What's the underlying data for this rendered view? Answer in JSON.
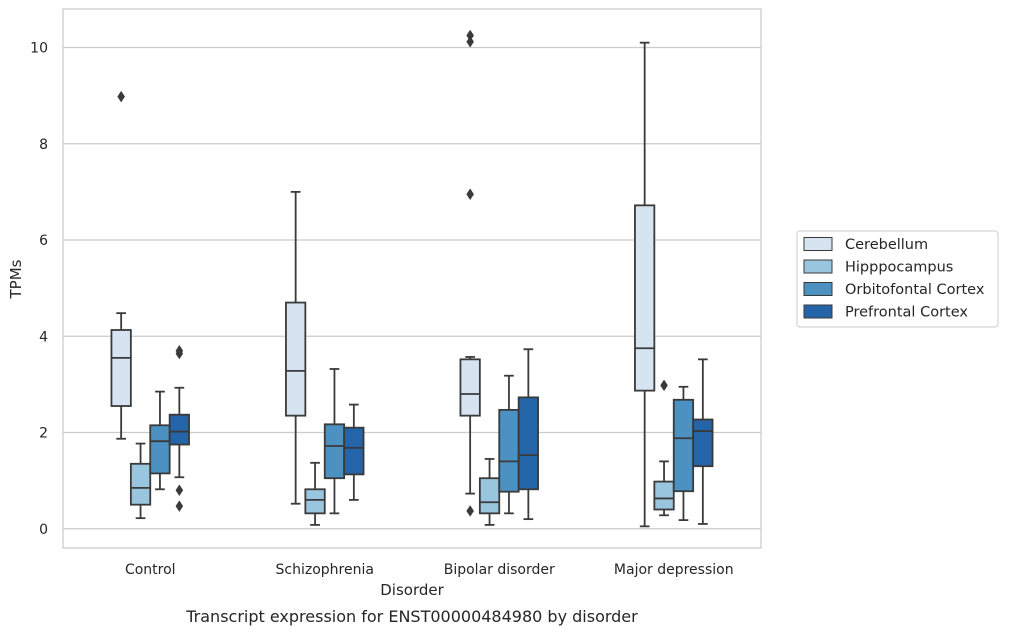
{
  "chart_data": {
    "type": "boxplot",
    "caption": "Transcript expression for ENST00000484980 by disorder",
    "xlabel": "Disorder",
    "ylabel": "TPMs",
    "ylim": [
      -0.4,
      10.8
    ],
    "yticks": [
      0,
      2,
      4,
      6,
      8,
      10
    ],
    "grid": true,
    "legend_position": "right",
    "categories": [
      "Control",
      "Schizophrenia",
      "Bipolar disorder",
      "Major depression"
    ],
    "series": [
      {
        "name": "Cerebellum",
        "color": "#d6e4f2",
        "boxes": [
          {
            "low": 1.87,
            "q1": 2.55,
            "median": 3.55,
            "q3": 4.13,
            "high": 4.48,
            "outliers": [
              8.98
            ]
          },
          {
            "low": 0.52,
            "q1": 2.35,
            "median": 3.28,
            "q3": 4.7,
            "high": 7.0,
            "outliers": []
          },
          {
            "low": 0.73,
            "q1": 2.35,
            "median": 2.8,
            "q3": 3.52,
            "high": 3.57,
            "outliers": [
              0.37,
              6.95,
              10.12,
              10.25
            ]
          },
          {
            "low": 0.05,
            "q1": 2.87,
            "median": 3.75,
            "q3": 6.72,
            "high": 10.1,
            "outliers": []
          }
        ]
      },
      {
        "name": "Hipppocampus",
        "color": "#9ac5de",
        "boxes": [
          {
            "low": 0.22,
            "q1": 0.5,
            "median": 0.85,
            "q3": 1.35,
            "high": 1.77,
            "outliers": []
          },
          {
            "low": 0.08,
            "q1": 0.32,
            "median": 0.6,
            "q3": 0.82,
            "high": 1.37,
            "outliers": []
          },
          {
            "low": 0.08,
            "q1": 0.32,
            "median": 0.55,
            "q3": 1.05,
            "high": 1.45,
            "outliers": []
          },
          {
            "low": 0.28,
            "q1": 0.4,
            "median": 0.63,
            "q3": 0.98,
            "high": 1.4,
            "outliers": [
              2.98
            ]
          }
        ]
      },
      {
        "name": "Orbitofontal Cortex",
        "color": "#4b91c2",
        "boxes": [
          {
            "low": 0.82,
            "q1": 1.15,
            "median": 1.82,
            "q3": 2.15,
            "high": 2.85,
            "outliers": []
          },
          {
            "low": 0.32,
            "q1": 1.05,
            "median": 1.72,
            "q3": 2.17,
            "high": 3.32,
            "outliers": []
          },
          {
            "low": 0.32,
            "q1": 0.77,
            "median": 1.4,
            "q3": 2.47,
            "high": 3.18,
            "outliers": []
          },
          {
            "low": 0.18,
            "q1": 0.78,
            "median": 1.88,
            "q3": 2.68,
            "high": 2.95,
            "outliers": []
          }
        ]
      },
      {
        "name": "Prefrontal Cortex",
        "color": "#2464a8",
        "boxes": [
          {
            "low": 1.07,
            "q1": 1.75,
            "median": 2.02,
            "q3": 2.37,
            "high": 2.93,
            "outliers": [
              0.47,
              0.8,
              3.64,
              3.7
            ]
          },
          {
            "low": 0.6,
            "q1": 1.13,
            "median": 1.68,
            "q3": 2.1,
            "high": 2.58,
            "outliers": []
          },
          {
            "low": 0.2,
            "q1": 0.82,
            "median": 1.53,
            "q3": 2.73,
            "high": 3.73,
            "outliers": []
          },
          {
            "low": 0.1,
            "q1": 1.3,
            "median": 2.03,
            "q3": 2.27,
            "high": 3.52,
            "outliers": []
          }
        ]
      }
    ]
  }
}
